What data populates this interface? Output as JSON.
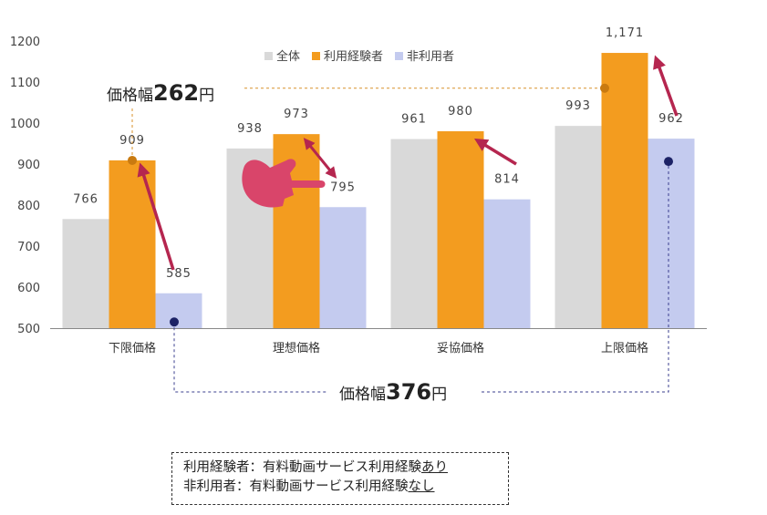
{
  "chart_data": {
    "type": "bar",
    "categories": [
      "下限価格",
      "理想価格",
      "妥協価格",
      "上限価格"
    ],
    "series": [
      {
        "name": "全体",
        "values": [
          766,
          938,
          961,
          993
        ],
        "color": "#d9d9d9"
      },
      {
        "name": "利用経験者",
        "values": [
          909,
          973,
          980,
          1171
        ],
        "color": "#f39c1f"
      },
      {
        "name": "非利用者",
        "values": [
          585,
          795,
          814,
          962
        ],
        "color": "#c4cbef"
      }
    ],
    "data_labels": [
      [
        "766",
        "938",
        "961",
        "993"
      ],
      [
        "909",
        "973",
        "980",
        "1,171"
      ],
      [
        "585",
        "795",
        "814",
        "962"
      ]
    ],
    "ylim": [
      500,
      1200
    ],
    "yticks": [
      500,
      600,
      700,
      800,
      900,
      1000,
      1100,
      1200
    ],
    "legend": "top-center",
    "grid": false,
    "annotations": {
      "range_experienced": {
        "prefix": "価格幅",
        "value": "262",
        "suffix": "円"
      },
      "range_nonuser": {
        "prefix": "価格幅",
        "value": "376",
        "suffix": "円"
      }
    }
  },
  "note": {
    "line1_prefix": "利用経験者：有料動画サービス利用経験",
    "line1_underlined": "あり",
    "line2_prefix": "非利用者：有料動画サービス利用経験",
    "line2_underlined": "なし"
  },
  "colors": {
    "arrow": "#b5264f",
    "hand": "#d9456a",
    "dot_orange": "#c97a10",
    "dot_navy": "#1c2266",
    "guide_orange": "#d8912a",
    "guide_navy": "#3b3f8f"
  },
  "icons": [
    "pointing-hand-icon",
    "double-arrow-icon"
  ]
}
